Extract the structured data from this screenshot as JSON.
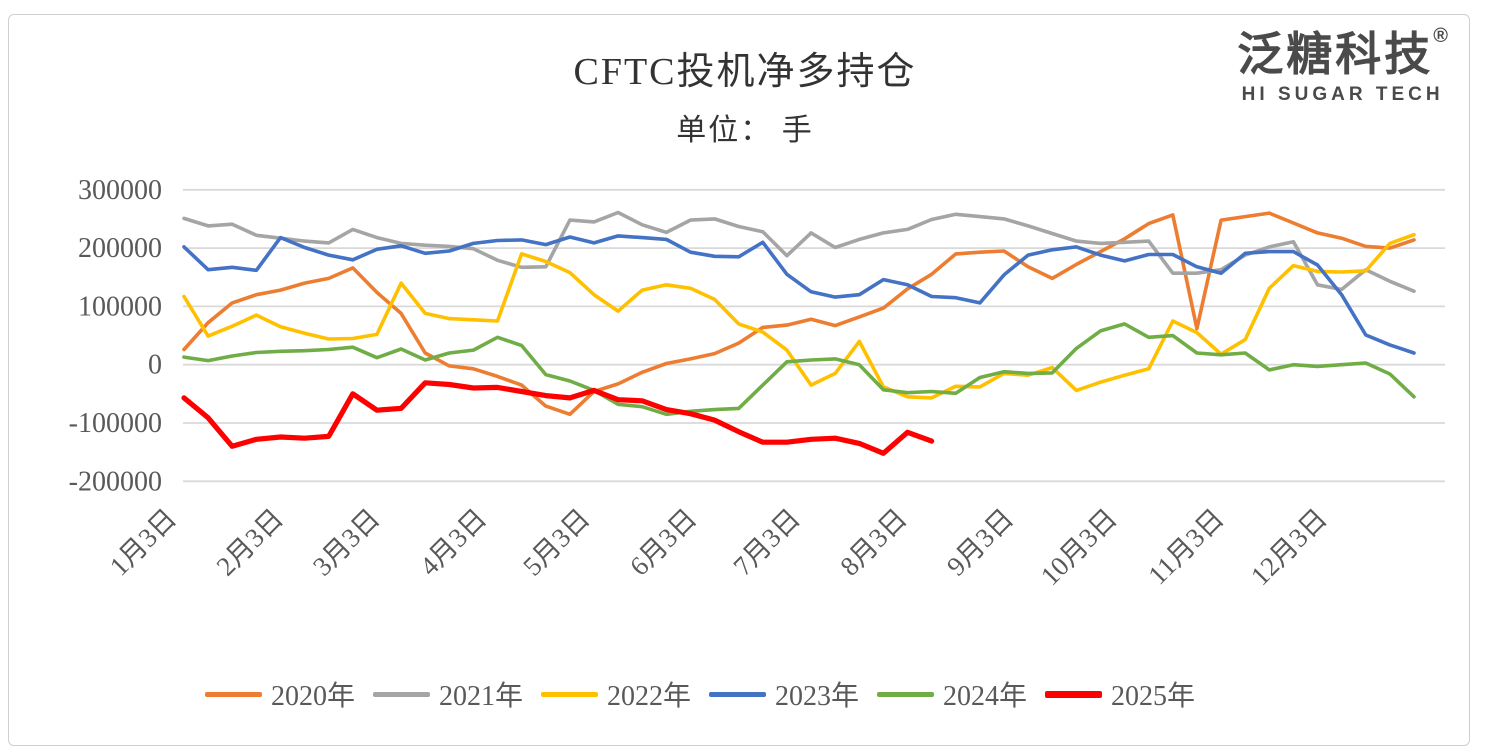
{
  "logo": {
    "zh": "泛糖科技",
    "reg": "®",
    "en": "HI SUGAR TECH"
  },
  "chart_data": {
    "type": "line",
    "title": "CFTC投机净多持仓",
    "subtitle": "单位： 手",
    "weeks": 52,
    "grid": "horizontal-only",
    "legend_position": "bottom",
    "colors": {
      "grid": "#d9d9d9",
      "axis_text": "#595959",
      "title_text": "#333333"
    },
    "y_axis": {
      "min": -200000,
      "max": 300000,
      "step": 100000,
      "ticks": [
        300000,
        200000,
        100000,
        0,
        -100000,
        -200000
      ],
      "tick_labels": [
        "300000",
        "200000",
        "100000",
        "0",
        "-100000",
        "-200000"
      ]
    },
    "x_axis": {
      "tick_labels": [
        "1月3日",
        "2月3日",
        "3月3日",
        "4月3日",
        "5月3日",
        "6月3日",
        "7月3日",
        "8月3日",
        "9月3日",
        "10月3日",
        "11月3日",
        "12月3日"
      ],
      "tick_week_positions": [
        0,
        4.43,
        8.43,
        12.86,
        17.14,
        21.57,
        25.86,
        30.29,
        34.71,
        39.0,
        43.43,
        47.71
      ]
    },
    "series": [
      {
        "name": "2020年",
        "color": "#ED7D31",
        "width": 3.6,
        "values": [
          26000,
          72000,
          106000,
          120000,
          128000,
          140000,
          148000,
          166000,
          124000,
          88000,
          20000,
          -2000,
          -7000,
          -20000,
          -35000,
          -71000,
          -85000,
          -46000,
          -33000,
          -13000,
          2000,
          10000,
          19000,
          37000,
          64000,
          68000,
          78000,
          67000,
          82000,
          97000,
          130000,
          155000,
          190000,
          193000,
          195000,
          168000,
          148000,
          172000,
          194000,
          216000,
          242000,
          257000,
          62000,
          248000,
          254000,
          260000,
          243000,
          226000,
          217000,
          203000,
          200000,
          214000
        ]
      },
      {
        "name": "2021年",
        "color": "#A5A5A5",
        "width": 3.6,
        "values": [
          251000,
          238000,
          241000,
          222000,
          217000,
          212000,
          209000,
          232000,
          218000,
          208000,
          205000,
          203000,
          199000,
          179000,
          167000,
          168000,
          248000,
          245000,
          261000,
          240000,
          227000,
          248000,
          250000,
          237000,
          228000,
          187000,
          226000,
          201000,
          215000,
          226000,
          232000,
          249000,
          258000,
          254000,
          250000,
          238000,
          225000,
          212000,
          208000,
          210000,
          212000,
          157000,
          157000,
          163000,
          188000,
          202000,
          211000,
          137000,
          129000,
          163000,
          143000,
          126000
        ]
      },
      {
        "name": "2022年",
        "color": "#FFC000",
        "width": 3.6,
        "values": [
          117000,
          49000,
          66000,
          85000,
          65000,
          54000,
          44000,
          45000,
          52000,
          140000,
          88000,
          79000,
          77000,
          75000,
          190000,
          177000,
          158000,
          120000,
          92000,
          128000,
          137000,
          131000,
          112000,
          70000,
          56000,
          25000,
          -35000,
          -15000,
          40000,
          -38000,
          -55000,
          -57000,
          -37000,
          -38000,
          -15000,
          -18000,
          -5000,
          -44000,
          -30000,
          -18000,
          -7000,
          75000,
          55000,
          18000,
          43000,
          131000,
          170000,
          160000,
          159000,
          161000,
          208000,
          223000
        ]
      },
      {
        "name": "2023年",
        "color": "#4472C4",
        "width": 3.6,
        "values": [
          202000,
          163000,
          167000,
          162000,
          218000,
          201000,
          188000,
          180000,
          198000,
          204000,
          191000,
          195000,
          208000,
          213000,
          214000,
          206000,
          219000,
          209000,
          221000,
          218000,
          215000,
          193000,
          186000,
          185000,
          210000,
          155000,
          125000,
          116000,
          120000,
          146000,
          137000,
          117000,
          115000,
          106000,
          154000,
          188000,
          197000,
          202000,
          188000,
          178000,
          189000,
          189000,
          168000,
          157000,
          191000,
          194000,
          194000,
          171000,
          120000,
          51000,
          34000,
          20000
        ]
      },
      {
        "name": "2024年",
        "color": "#70AD47",
        "width": 3.6,
        "values": [
          13000,
          7000,
          15000,
          21000,
          23000,
          24000,
          26000,
          30000,
          12000,
          27000,
          8000,
          20000,
          25000,
          47000,
          33000,
          -17000,
          -28000,
          -44000,
          -68000,
          -72000,
          -85000,
          -80000,
          -77000,
          -75000,
          -35000,
          5000,
          8000,
          10000,
          0,
          -43000,
          -48000,
          -46000,
          -49000,
          -22000,
          -12000,
          -15000,
          -14000,
          28000,
          58000,
          70000,
          47000,
          50000,
          20000,
          17000,
          20000,
          -9000,
          0,
          -3000,
          0,
          3000,
          -16000,
          -55000
        ]
      },
      {
        "name": "2025年",
        "color": "#FF0000",
        "width": 5.2,
        "values": [
          -57000,
          -91000,
          -140000,
          -128000,
          -124000,
          -126000,
          -123000,
          -50000,
          -78000,
          -75000,
          -31000,
          -34000,
          -40000,
          -39000,
          -46000,
          -53000,
          -57000,
          -44000,
          -60000,
          -62000,
          -77000,
          -84000,
          -95000,
          -115000,
          -133000,
          -133000,
          -128000,
          -126000,
          -135000,
          -152000,
          -116000,
          -131000,
          null,
          null,
          null,
          null,
          null,
          null,
          null,
          null,
          null,
          null,
          null,
          null,
          null,
          null,
          null,
          null,
          null,
          null,
          null,
          null
        ]
      }
    ]
  }
}
